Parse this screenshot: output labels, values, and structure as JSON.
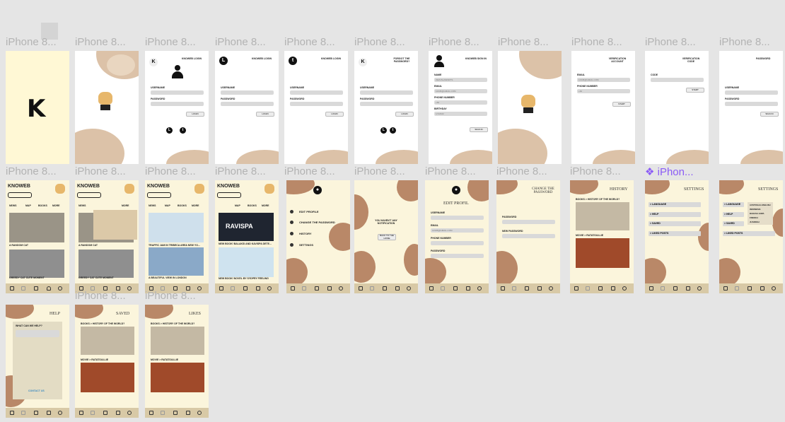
{
  "canvas": {
    "background": "#e5e5e5"
  },
  "frame_labels": {
    "row1": [
      "iPhone 8...",
      "iPhone 8...",
      "iPhone 8...",
      "iPhone 8...",
      "iPhone 8...",
      "iPhone 8...",
      "iPhone 8...",
      "iPhone 8...",
      "iPhone 8...",
      "iPhone 8...",
      "iPhone 8..."
    ],
    "row2": [
      "iPhone 8...",
      "iPhone 8...",
      "iPhone 8...",
      "iPhone 8...",
      "iPhone 8...",
      "iPhone 8...",
      "iPhone 8...",
      "iPhone 8...",
      "iPhone 8..."
    ],
    "component": "❖ iPhon...",
    "row3": [
      "iPhone 8...",
      "iPhone 8..."
    ]
  },
  "splash": {
    "logo": "K"
  },
  "login": {
    "title": "KNOWEB LOGIN",
    "username": "USERNAME",
    "password": "PASSWORD",
    "login_btn": "LOGIN",
    "forgot_title": "FORGOT THE PASSWORD?",
    "signin_title": "KNOWEB SIGN IN",
    "name": "NAME",
    "name_val": "ZEZUSLAWNRTS",
    "email": "EMAIL",
    "email_val": "12345@GMAIL.COM",
    "phone": "PHONE NUMBER",
    "phone_val": "+62",
    "birthday": "BIRTHDAY",
    "birthday_val": "1/1/2022",
    "signin_btn": "SIGN IN",
    "verif_title": "VERIFICATION ACCOUNT",
    "verif_code_title": "VERIFICATION CODE",
    "code": "CODE",
    "start": "START",
    "password_title": "PASSWORD",
    "signin_lower": "SIGN IN"
  },
  "feed": {
    "brand": "KNOWEB",
    "tabs": [
      "NEWS",
      "MAP",
      "BOOKS",
      "MORE"
    ],
    "cat1": "A RANDOM CAT",
    "cat2": "GREEDY CAT CUTE MOMENT",
    "map1": "TRAFFIC JAM IN TRIBECA AREA NEW YO...",
    "map2": "A BEAUTIFUL VIEW IN LONDON",
    "book1": "NEW BOOK! BALAKSI AND KAVISPA DETE...",
    "book2": "NEW BOOK! NOVEL BY SYDPRY FEELING",
    "book1_cover": "RAVISPA"
  },
  "more_menu": [
    "EDIT PROFILE",
    "CHANGE THE PASSWORD",
    "HISTORY",
    "SETTINGS"
  ],
  "notif": {
    "text": "YOU HAVEN'T ANY NOTIFICATION",
    "btn": "BACK TO THE HOME"
  },
  "edit_profile": {
    "title": "EDIT PROFIL",
    "username": "USERNAME",
    "email": "EMAIL",
    "email_val": "12345@GMAIL.COM",
    "phone": "PHONE NUMBER",
    "password": "PASSWORD"
  },
  "change_pw": {
    "title": "CHANGE THE PASSWORD",
    "password": "PASSWORD",
    "new_password": "NEW PASSWORD"
  },
  "history": {
    "title": "HISTORY",
    "item1": "BOOKS > HISTORY OF THE WORLD?",
    "item2": "MOVIE > RATATOULLIE"
  },
  "settings": {
    "title": "SETTINGS",
    "items": [
      "> LANGUAGE",
      "> HELP",
      "> SAVED",
      "> LIKED POSTS"
    ],
    "languages": [
      "AUSTRALIA-ENGLISH",
      "INDONESIA",
      "BAHASA JAWA",
      "FRENCH",
      "JUANNAH"
    ]
  },
  "help": {
    "title": "HELP",
    "question": "WHAT CAN WE HELP?",
    "contact": "CONTACT US"
  },
  "saved": {
    "title": "SAVED",
    "item1": "BOOKS > HISTORY OF THE WORLD?",
    "item2": "MOVIE > RATATOULLIE"
  },
  "likes": {
    "title": "LIKES",
    "item1": "BOOKS > HISTORY OF THE WORLD?",
    "item2": "MOVIE > RATATOULLIE"
  },
  "colors": {
    "cream": "#fbf5dc",
    "tan": "#dcc2a8",
    "brown": "#b98868",
    "accent": "#8b5cf6"
  }
}
